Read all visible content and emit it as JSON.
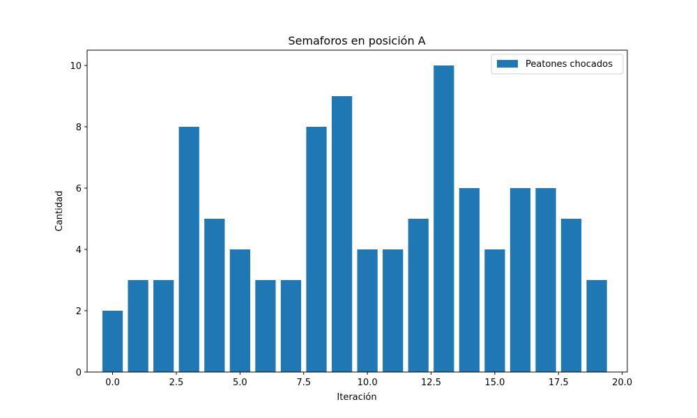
{
  "chart_data": {
    "type": "bar",
    "title": "Semaforos en posición A",
    "xlabel": "Iteración",
    "ylabel": "Cantidad",
    "x": [
      0,
      1,
      2,
      3,
      4,
      5,
      6,
      7,
      8,
      9,
      10,
      11,
      12,
      13,
      14,
      15,
      16,
      17,
      18,
      19
    ],
    "series": [
      {
        "name": "Peatones chocados",
        "color": "#1f77b4",
        "values": [
          2,
          3,
          3,
          8,
          5,
          4,
          3,
          3,
          8,
          9,
          4,
          4,
          5,
          10,
          6,
          4,
          6,
          6,
          5,
          3
        ]
      }
    ],
    "xlim": [
      -1.0,
      20.2
    ],
    "ylim": [
      0,
      10.5
    ],
    "xticks": [
      0.0,
      2.5,
      5.0,
      7.5,
      10.0,
      12.5,
      15.0,
      17.5,
      20.0
    ],
    "xtick_labels": [
      "0.0",
      "2.5",
      "5.0",
      "7.5",
      "10.0",
      "12.5",
      "15.0",
      "17.5",
      "20.0"
    ],
    "yticks": [
      0,
      2,
      4,
      6,
      8,
      10
    ],
    "ytick_labels": [
      "0",
      "2",
      "4",
      "6",
      "8",
      "10"
    ],
    "bar_width": 0.8,
    "grid": false,
    "legend_position": "upper right"
  }
}
